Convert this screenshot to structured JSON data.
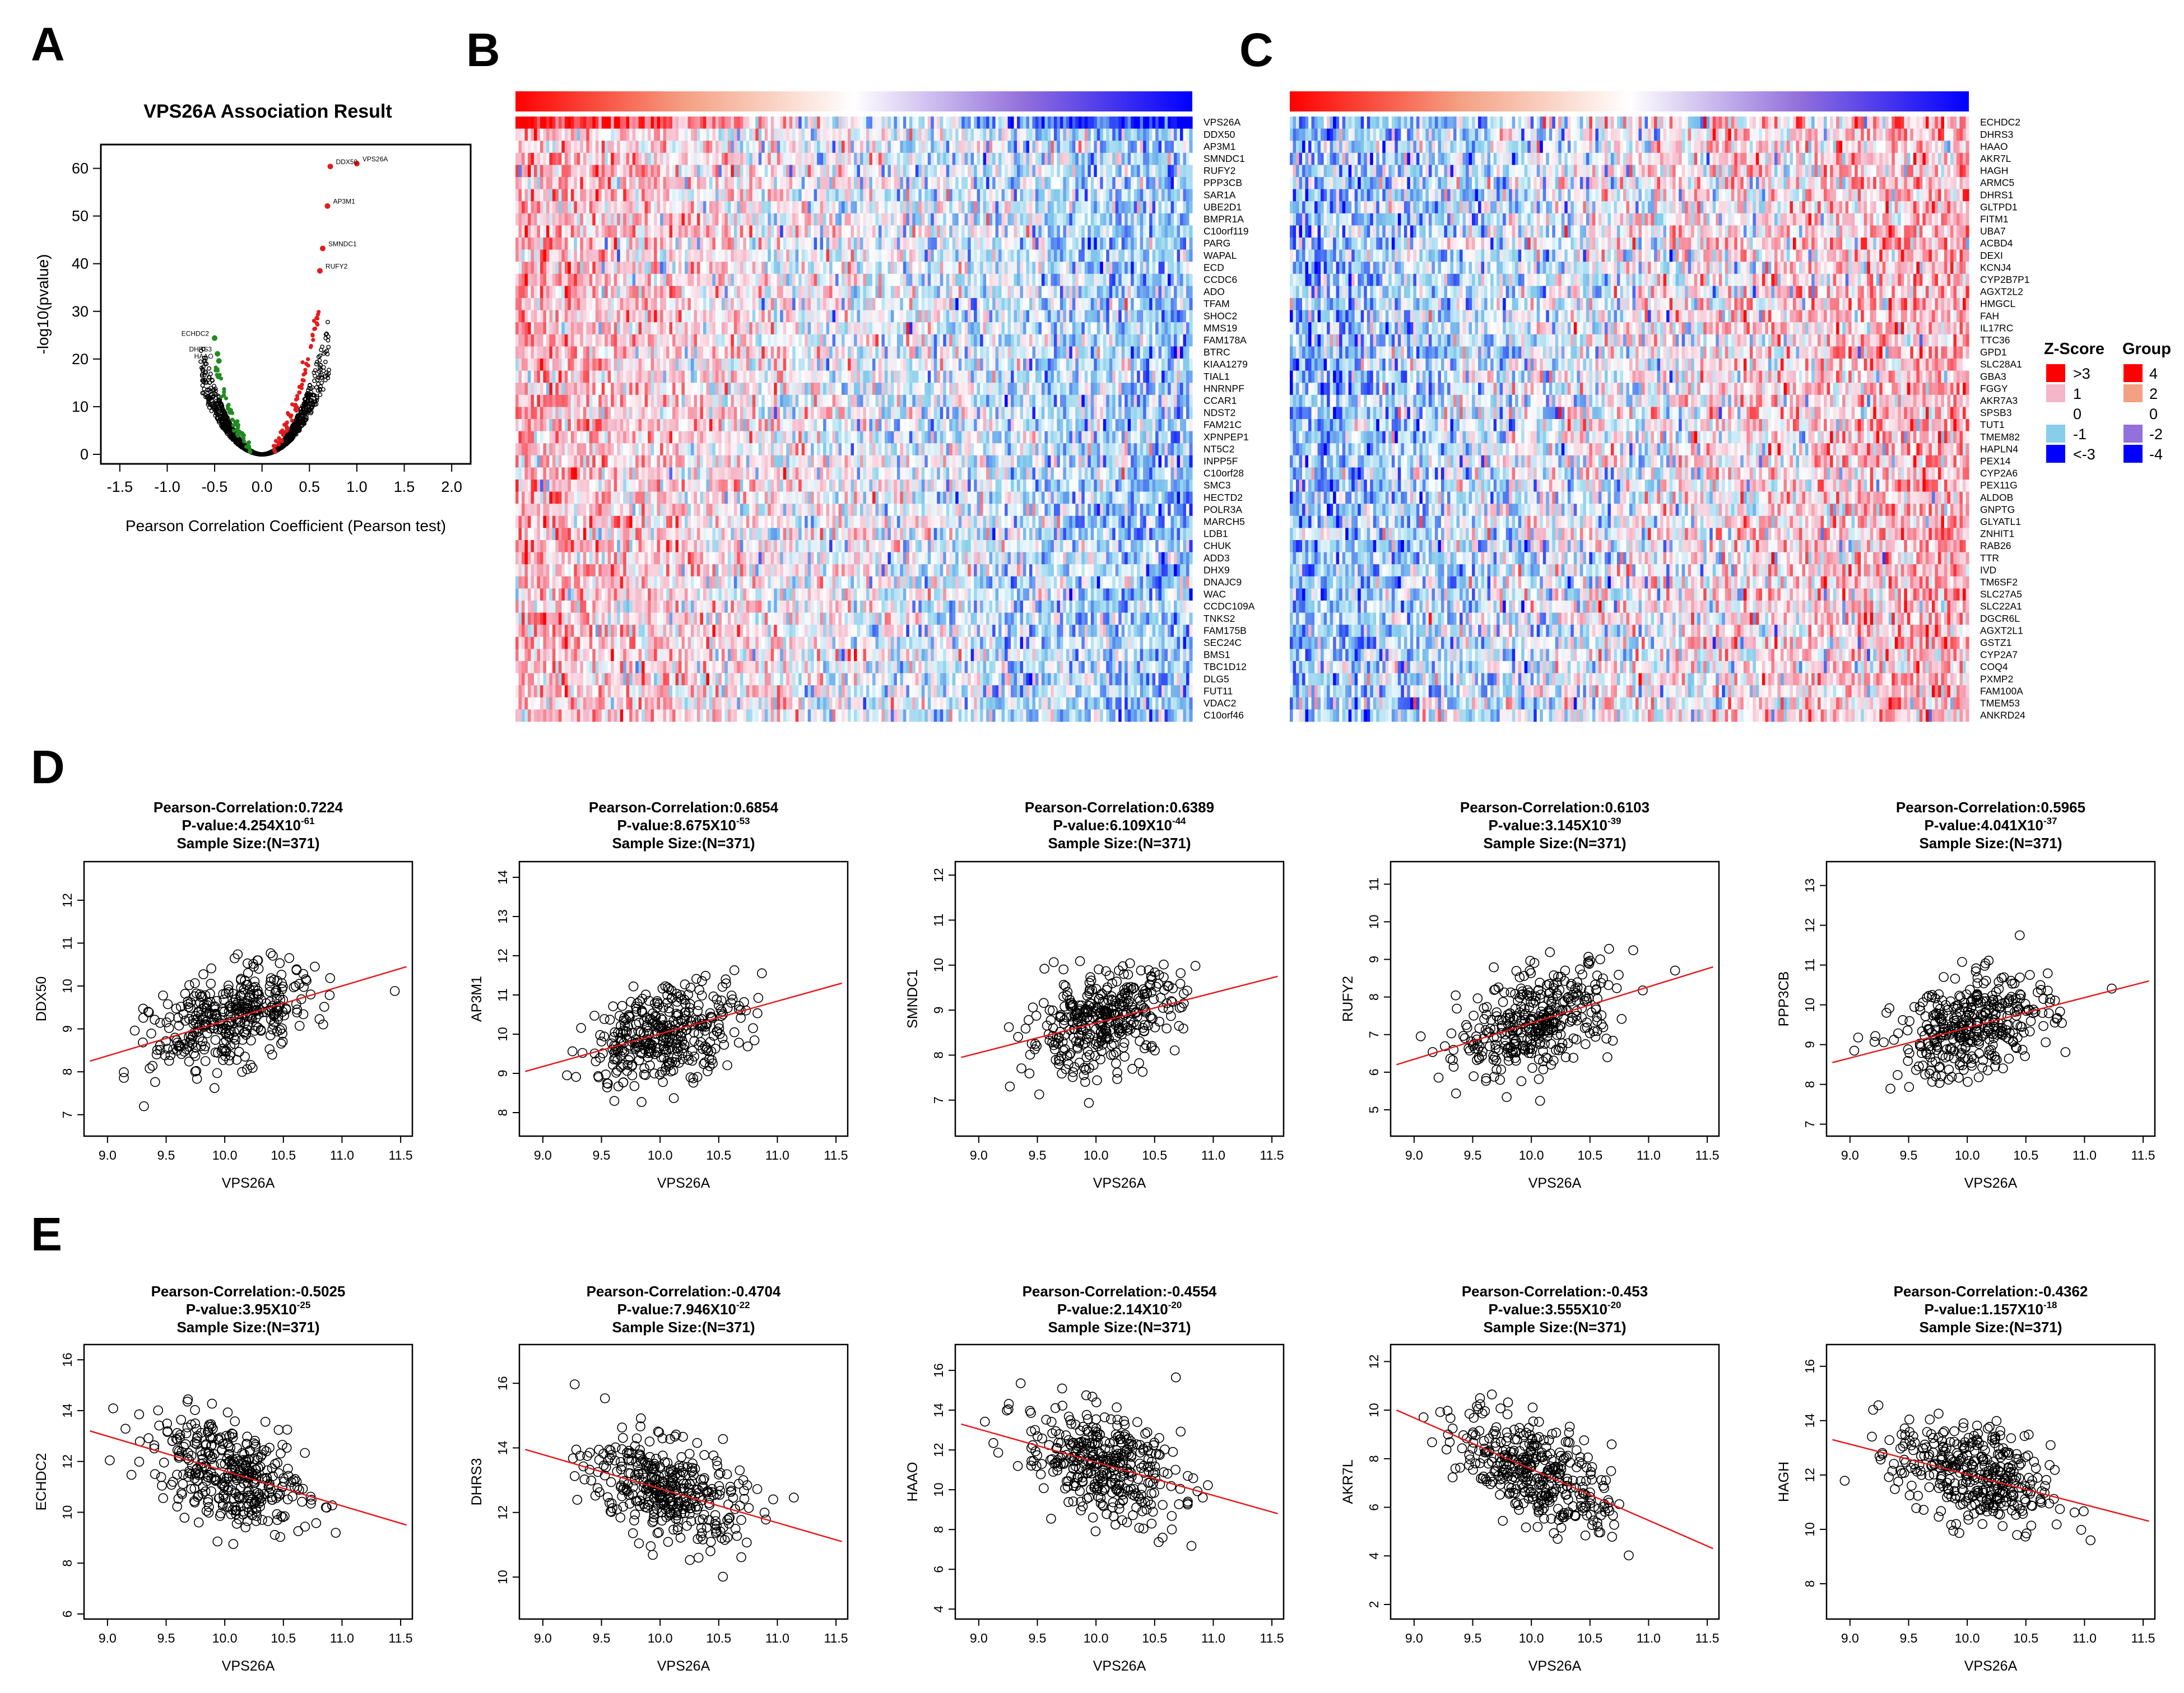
{
  "panel_letters": [
    "A",
    "B",
    "C",
    "D",
    "E"
  ],
  "chart_data": [
    {
      "id": "A",
      "type": "scatter",
      "title": "VPS26A Association Result",
      "xlabel": "Pearson Correlation Coefficient (Pearson test)",
      "ylabel": "-log10(pvalue)",
      "xlim": [
        -1.7,
        2.2
      ],
      "ylim": [
        -2,
        65
      ],
      "xticks": [
        "-1.5",
        "-1.0",
        "-0.5",
        "0.0",
        "0.5",
        "1.0",
        "1.5",
        "2.0"
      ],
      "yticks": [
        "0",
        "10",
        "20",
        "30",
        "40",
        "50",
        "60"
      ],
      "colors": {
        "background_points": "#000000",
        "positive_top": "#e41a1c",
        "negative_top": "#228b22"
      },
      "labeled_points": [
        {
          "label": "VPS26A",
          "x": 1.0,
          "y": 61.0,
          "color": "#e41a1c"
        },
        {
          "label": "DDX50",
          "x": 0.72,
          "y": 60.4,
          "color": "#e41a1c"
        },
        {
          "label": "AP3M1",
          "x": 0.69,
          "y": 52.1,
          "color": "#e41a1c"
        },
        {
          "label": "SMNDC1",
          "x": 0.64,
          "y": 43.2,
          "color": "#e41a1c"
        },
        {
          "label": "RUFY2",
          "x": 0.61,
          "y": 38.5,
          "color": "#e41a1c"
        },
        {
          "label": "ECHDC2",
          "x": -0.5,
          "y": 24.4,
          "color": "#228b22"
        },
        {
          "label": "DHRS3",
          "x": -0.47,
          "y": 21.1,
          "color": "#228b22"
        },
        {
          "label": "HAAO",
          "x": -0.455,
          "y": 19.6,
          "color": "#228b22"
        }
      ]
    },
    {
      "id": "B",
      "type": "heatmap",
      "legend_title": "",
      "row_labels": [
        "VPS26A",
        "DDX50",
        "AP3M1",
        "SMNDC1",
        "RUFY2",
        "PPP3CB",
        "SAR1A",
        "UBE2D1",
        "BMPR1A",
        "C10orf119",
        "PARG",
        "WAPAL",
        "ECD",
        "CCDC6",
        "ADO",
        "TFAM",
        "SHOC2",
        "MMS19",
        "FAM178A",
        "BTRC",
        "KIAA1279",
        "TIAL1",
        "HNRNPF",
        "CCAR1",
        "NDST2",
        "FAM21C",
        "XPNPEP1",
        "NT5C2",
        "INPP5F",
        "C10orf28",
        "SMC3",
        "HECTD2",
        "POLR3A",
        "MARCH5",
        "LDB1",
        "CHUK",
        "ADD3",
        "DHX9",
        "DNAJC9",
        "WAC",
        "CCDC109A",
        "TNKS2",
        "FAM175B",
        "SEC24C",
        "BMS1",
        "TBC1D12",
        "DLG5",
        "FUT11",
        "VDAC2",
        "C10orf46"
      ],
      "correlation": "positive"
    },
    {
      "id": "C",
      "type": "heatmap",
      "row_labels": [
        "ECHDC2",
        "DHRS3",
        "HAAO",
        "AKR7L",
        "HAGH",
        "ARMC5",
        "DHRS1",
        "GLTPD1",
        "FITM1",
        "UBA7",
        "ACBD4",
        "DEXI",
        "KCNJ4",
        "CYP2B7P1",
        "AGXT2L2",
        "HMGCL",
        "FAH",
        "IL17RC",
        "TTC36",
        "GPD1",
        "SLC28A1",
        "GBA3",
        "FGGY",
        "AKR7A3",
        "SPSB3",
        "TUT1",
        "TMEM82",
        "HAPLN4",
        "PEX14",
        "CYP2A6",
        "PEX11G",
        "ALDOB",
        "GNPTG",
        "GLYATL1",
        "ZNHIT1",
        "RAB26",
        "TTR",
        "IVD",
        "TM6SF2",
        "SLC27A5",
        "SLC22A1",
        "DGCR6L",
        "AGXT2L1",
        "GSTZ1",
        "CYP2A7",
        "COQ4",
        "PXMP2",
        "FAM100A",
        "TMEM53",
        "ANKRD24"
      ],
      "correlation": "negative"
    },
    {
      "id": "heatmap-legend",
      "type": "table",
      "zscore_title": "Z-Score",
      "group_title": "Group",
      "zscore_levels": [
        {
          "label": ">3",
          "color": "#ff0000"
        },
        {
          "label": "1",
          "color": "#f4b6c8"
        },
        {
          "label": "0",
          "color": "#ffffff"
        },
        {
          "label": "-1",
          "color": "#87ceeb"
        },
        {
          "label": "<-3",
          "color": "#0000ff"
        }
      ],
      "group_levels": [
        {
          "label": "4",
          "color": "#ff0000"
        },
        {
          "label": "2",
          "color": "#f4a083"
        },
        {
          "label": "0",
          "color": "#ffffff"
        },
        {
          "label": "-2",
          "color": "#9370db"
        },
        {
          "label": "-4",
          "color": "#0000ff"
        }
      ]
    },
    {
      "id": "D",
      "type": "scatter",
      "series_count": 5,
      "n_points": 371,
      "xlabel": "VPS26A",
      "xlim": [
        8.8,
        11.6
      ],
      "xticks": [
        "9.0",
        "9.5",
        "10.0",
        "10.5",
        "11.0",
        "11.5"
      ],
      "fit_color": "#e41a1c",
      "plots": [
        {
          "gene": "DDX50",
          "corr_line": "Pearson-Correlation:0.7224",
          "p_mant": "P-value:4.254X10",
          "p_exp": "-61",
          "n_line": "Sample Size:(N=371)",
          "ylim": [
            6.5,
            12.9
          ],
          "yticks": [
            "7",
            "8",
            "9",
            "10",
            "11",
            "12"
          ],
          "fit": [
            [
              8.85,
              8.25
            ],
            [
              11.55,
              10.45
            ]
          ],
          "r": 0.7224
        },
        {
          "gene": "AP3M1",
          "corr_line": "Pearson-Correlation:0.6854",
          "p_mant": "P-value:8.675X10",
          "p_exp": "-53",
          "n_line": "Sample Size:(N=371)",
          "ylim": [
            7.4,
            14.4
          ],
          "yticks": [
            "8",
            "9",
            "10",
            "11",
            "12",
            "13",
            "14"
          ],
          "fit": [
            [
              8.85,
              9.05
            ],
            [
              11.55,
              11.3
            ]
          ],
          "r": 0.6854
        },
        {
          "gene": "SMNDC1",
          "corr_line": "Pearson-Correlation:0.6389",
          "p_mant": "P-value:6.109X10",
          "p_exp": "-44",
          "n_line": "Sample Size:(N=371)",
          "ylim": [
            6.2,
            12.3
          ],
          "yticks": [
            "7",
            "8",
            "9",
            "10",
            "11",
            "12"
          ],
          "fit": [
            [
              8.85,
              7.95
            ],
            [
              11.55,
              9.75
            ]
          ],
          "r": 0.6389
        },
        {
          "gene": "RUFY2",
          "corr_line": "Pearson-Correlation:0.6103",
          "p_mant": "P-value:3.145X10",
          "p_exp": "-39",
          "n_line": "Sample Size:(N=371)",
          "ylim": [
            4.3,
            11.6
          ],
          "yticks": [
            "5",
            "6",
            "7",
            "8",
            "9",
            "10",
            "11"
          ],
          "fit": [
            [
              8.85,
              6.2
            ],
            [
              11.55,
              8.8
            ]
          ],
          "r": 0.6103
        },
        {
          "gene": "PPP3CB",
          "corr_line": "Pearson-Correlation:0.5965",
          "p_mant": "P-value:4.041X10",
          "p_exp": "-37",
          "n_line": "Sample Size:(N=371)",
          "ylim": [
            6.7,
            13.6
          ],
          "yticks": [
            "7",
            "8",
            "9",
            "10",
            "11",
            "12",
            "13"
          ],
          "fit": [
            [
              8.85,
              8.55
            ],
            [
              11.55,
              10.6
            ]
          ],
          "r": 0.5965
        }
      ]
    },
    {
      "id": "E",
      "type": "scatter",
      "series_count": 5,
      "n_points": 371,
      "xlabel": "VPS26A",
      "xlim": [
        8.8,
        11.6
      ],
      "xticks": [
        "9.0",
        "9.5",
        "10.0",
        "10.5",
        "11.0",
        "11.5"
      ],
      "fit_color": "#e41a1c",
      "plots": [
        {
          "gene": "ECHDC2",
          "corr_line": "Pearson-Correlation:-0.5025",
          "p_mant": "P-value:3.95X10",
          "p_exp": "-25",
          "n_line": "Sample Size:(N=371)",
          "ylim": [
            5.8,
            16.6
          ],
          "yticks": [
            "6",
            "8",
            "10",
            "12",
            "14",
            "16"
          ],
          "fit": [
            [
              8.85,
              13.2
            ],
            [
              11.55,
              9.5
            ]
          ],
          "r": -0.5025
        },
        {
          "gene": "DHRS3",
          "corr_line": "Pearson-Correlation:-0.4704",
          "p_mant": "P-value:7.946X10",
          "p_exp": "-22",
          "n_line": "Sample Size:(N=371)",
          "ylim": [
            8.7,
            17.2
          ],
          "yticks": [
            "10",
            "12",
            "14",
            "16"
          ],
          "fit": [
            [
              8.85,
              13.95
            ],
            [
              11.55,
              11.1
            ]
          ],
          "r": -0.4704
        },
        {
          "gene": "HAAO",
          "corr_line": "Pearson-Correlation:-0.4554",
          "p_mant": "P-value:2.14X10",
          "p_exp": "-20",
          "n_line": "Sample Size:(N=371)",
          "ylim": [
            3.5,
            17.3
          ],
          "yticks": [
            "4",
            "6",
            "8",
            "10",
            "12",
            "14",
            "16"
          ],
          "fit": [
            [
              8.85,
              13.3
            ],
            [
              11.55,
              8.8
            ]
          ],
          "r": -0.4554
        },
        {
          "gene": "AKR7L",
          "corr_line": "Pearson-Correlation:-0.453",
          "p_mant": "P-value:3.555X10",
          "p_exp": "-20",
          "n_line": "Sample Size:(N=371)",
          "ylim": [
            1.4,
            12.7
          ],
          "yticks": [
            "2",
            "4",
            "6",
            "8",
            "10",
            "12"
          ],
          "fit": [
            [
              8.85,
              10.0
            ],
            [
              11.55,
              4.3
            ]
          ],
          "r": -0.453
        },
        {
          "gene": "HAGH",
          "corr_line": "Pearson-Correlation:-0.4362",
          "p_mant": "P-value:1.157X10",
          "p_exp": "-18",
          "n_line": "Sample Size:(N=371)",
          "ylim": [
            6.7,
            16.8
          ],
          "yticks": [
            "8",
            "10",
            "12",
            "14",
            "16"
          ],
          "fit": [
            [
              8.85,
              13.3
            ],
            [
              11.55,
              10.3
            ]
          ],
          "r": -0.4362
        }
      ]
    }
  ]
}
